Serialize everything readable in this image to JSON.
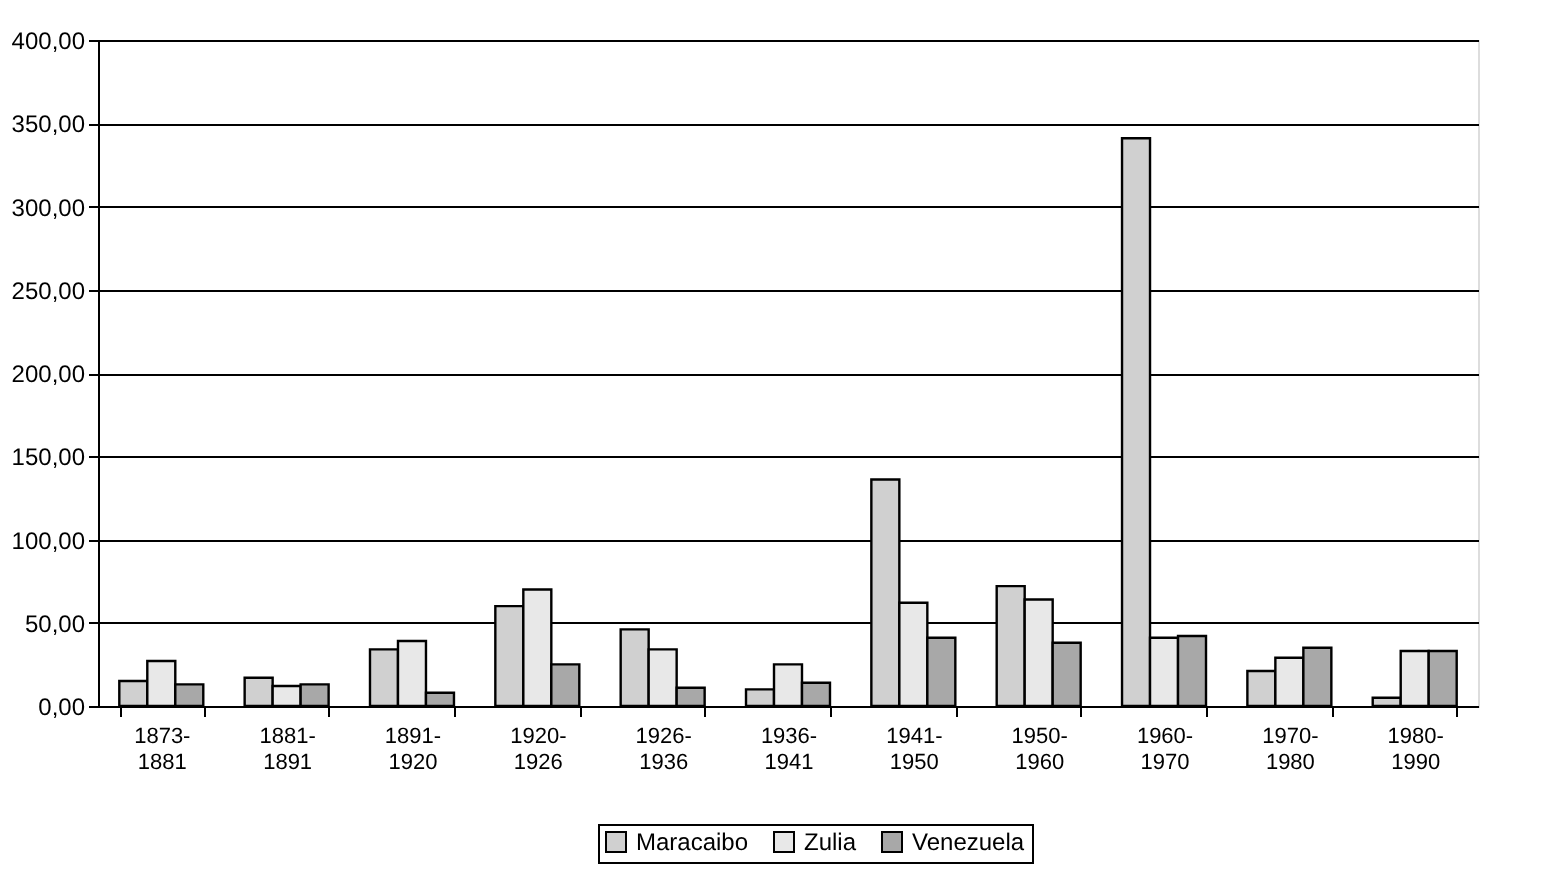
{
  "chart_data": {
    "type": "bar",
    "categories": [
      "1873-1881",
      "1881-1891",
      "1891-1920",
      "1920-1926",
      "1926-1936",
      "1936-1941",
      "1941-1950",
      "1950-1960",
      "1960-1970",
      "1970-1980",
      "1980-1990"
    ],
    "series": [
      {
        "name": "Maracaibo",
        "color": "#d0d0d0",
        "values": [
          15,
          17,
          34,
          60,
          46,
          10,
          136,
          72,
          341,
          21,
          5
        ]
      },
      {
        "name": "Zulia",
        "color": "#e8e8e8",
        "values": [
          27,
          12,
          39,
          70,
          34,
          25,
          62,
          64,
          41,
          29,
          33
        ]
      },
      {
        "name": "Venezuela",
        "color": "#a8a8a8",
        "values": [
          13,
          13,
          8,
          25,
          11,
          14,
          41,
          38,
          42,
          35,
          33
        ]
      }
    ],
    "ylim": [
      0,
      400
    ],
    "yticks": [
      {
        "value": 0,
        "label": "0,00"
      },
      {
        "value": 50,
        "label": "50,00"
      },
      {
        "value": 100,
        "label": "100,00"
      },
      {
        "value": 150,
        "label": "150,00"
      },
      {
        "value": 200,
        "label": "200,00"
      },
      {
        "value": 250,
        "label": "250,00"
      },
      {
        "value": 300,
        "label": "300,00"
      },
      {
        "value": 350,
        "label": "350,00"
      },
      {
        "value": 400,
        "label": "400,00"
      }
    ],
    "grid": "y",
    "legend": "bottom"
  }
}
